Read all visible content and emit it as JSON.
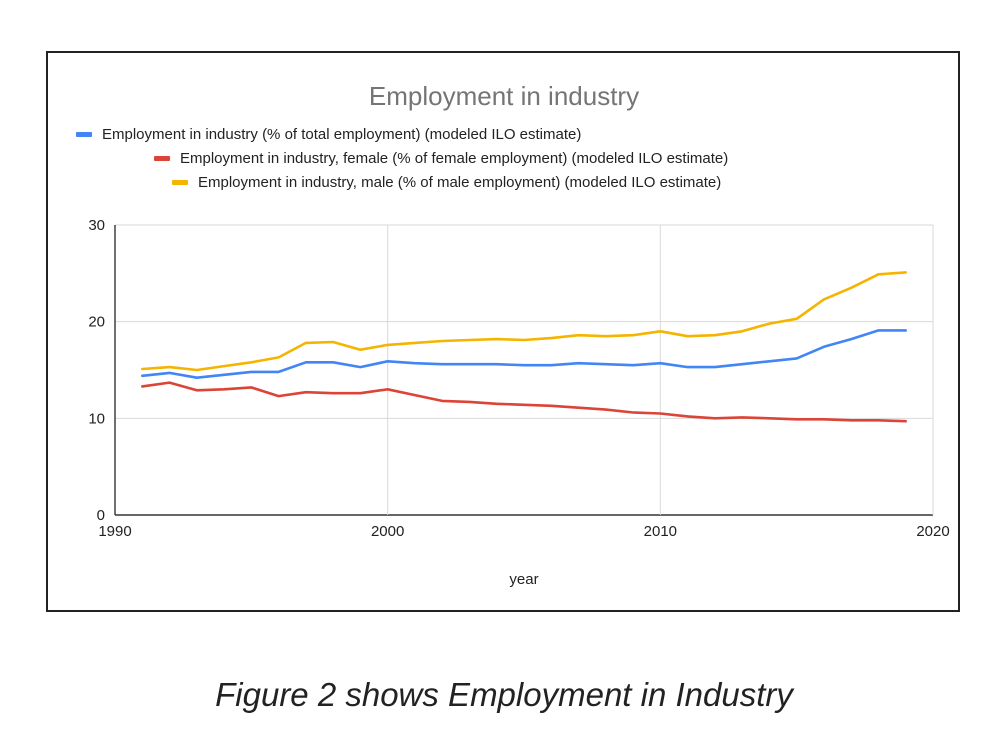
{
  "caption": "Figure 2 shows Employment in Industry",
  "chart_data": {
    "type": "line",
    "title": "Employment in industry",
    "xlabel": "year",
    "ylabel": "",
    "xlim": [
      1990,
      2020
    ],
    "ylim": [
      0,
      30
    ],
    "xticks": [
      1990,
      2000,
      2010,
      2020
    ],
    "yticks": [
      0,
      10,
      20,
      30
    ],
    "grid": true,
    "legend_position": "top",
    "x": [
      1991,
      1992,
      1993,
      1994,
      1995,
      1996,
      1997,
      1998,
      1999,
      2000,
      2001,
      2002,
      2003,
      2004,
      2005,
      2006,
      2007,
      2008,
      2009,
      2010,
      2011,
      2012,
      2013,
      2014,
      2015,
      2016,
      2017,
      2018,
      2019
    ],
    "series": [
      {
        "name": "Employment in industry (% of total employment) (modeled ILO estimate)",
        "color": "#4285f4",
        "values": [
          14.4,
          14.7,
          14.2,
          14.5,
          14.8,
          14.8,
          15.8,
          15.8,
          15.3,
          15.9,
          15.7,
          15.6,
          15.6,
          15.6,
          15.5,
          15.5,
          15.7,
          15.6,
          15.5,
          15.7,
          15.3,
          15.3,
          15.6,
          15.9,
          16.2,
          17.4,
          18.2,
          19.1,
          19.1
        ]
      },
      {
        "name": "Employment in industry, female (% of female employment) (modeled ILO estimate)",
        "color": "#db4437",
        "values": [
          13.3,
          13.7,
          12.9,
          13.0,
          13.2,
          12.3,
          12.7,
          12.6,
          12.6,
          13.0,
          12.4,
          11.8,
          11.7,
          11.5,
          11.4,
          11.3,
          11.1,
          10.9,
          10.6,
          10.5,
          10.2,
          10.0,
          10.1,
          10.0,
          9.9,
          9.9,
          9.8,
          9.8,
          9.7
        ]
      },
      {
        "name": "Employment in industry, male (% of male employment) (modeled ILO estimate)",
        "color": "#f4b400",
        "values": [
          15.1,
          15.3,
          15.0,
          15.4,
          15.8,
          16.3,
          17.8,
          17.9,
          17.1,
          17.6,
          17.8,
          18.0,
          18.1,
          18.2,
          18.1,
          18.3,
          18.6,
          18.5,
          18.6,
          19.0,
          18.5,
          18.6,
          19.0,
          19.8,
          20.3,
          22.3,
          23.5,
          24.9,
          25.1
        ]
      }
    ]
  }
}
